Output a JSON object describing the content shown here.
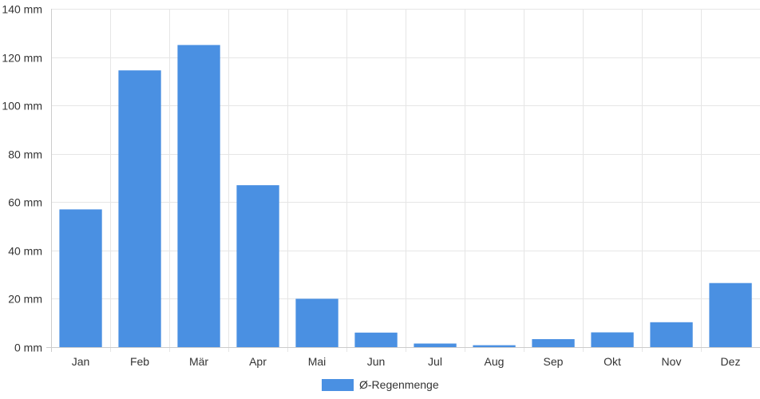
{
  "chart_data": {
    "type": "bar",
    "categories": [
      "Jan",
      "Feb",
      "Mär",
      "Apr",
      "Mai",
      "Jun",
      "Jul",
      "Aug",
      "Sep",
      "Okt",
      "Nov",
      "Dez"
    ],
    "series": [
      {
        "name": "Ø-Regenmenge",
        "values": [
          57,
          114.5,
          125,
          67,
          20,
          6,
          1.5,
          0.8,
          3.3,
          6.1,
          10.3,
          26.5
        ],
        "color": "#4a90e2"
      }
    ],
    "y_ticks": [
      "0 mm",
      "20 mm",
      "40 mm",
      "60 mm",
      "80 mm",
      "100 mm",
      "120 mm",
      "140 mm"
    ],
    "ylim": [
      0,
      140
    ],
    "y_step": 20,
    "grid": true,
    "legend_position": "bottom-center"
  }
}
